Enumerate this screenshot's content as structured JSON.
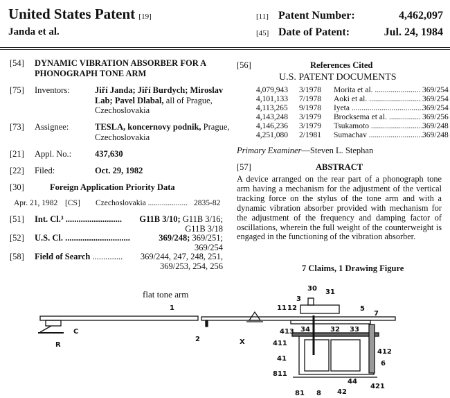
{
  "header": {
    "title": "United States Patent",
    "title_code": "[19]",
    "inventors_short": "Janda et al.",
    "patent_number_code": "[11]",
    "patent_number_label": "Patent Number:",
    "patent_number": "4,462,097",
    "date_code": "[45]",
    "date_label": "Date of Patent:",
    "date": "Jul. 24, 1984"
  },
  "left": {
    "title_code": "[54]",
    "title_line1": "DYNAMIC VIBRATION ABSORBER FOR A",
    "title_line2": "PHONOGRAPH TONE ARM",
    "inventors_code": "[75]",
    "inventors_label": "Inventors:",
    "inventors_line1": "Jiří Janda; Jiří Burdych; Miroslav",
    "inventors_line2_bold": "Lab; Pavel Dlabal,",
    "inventors_line2_rest": " all of Prague,",
    "inventors_line3": "Czechoslovakia",
    "assignee_code": "[73]",
    "assignee_label": "Assignee:",
    "assignee_bold": "TESLA, koncernovy podnik,",
    "assignee_rest": " Prague,",
    "assignee_line2": "Czechoslovakia",
    "appl_code": "[21]",
    "appl_label": "Appl. No.:",
    "appl_no": "437,630",
    "filed_code": "[22]",
    "filed_label": "Filed:",
    "filed": "Oct. 29, 1982",
    "foreign_code": "[30]",
    "foreign_title": "Foreign Application Priority Data",
    "foreign_date": "Apr. 21, 1982",
    "foreign_cc": "[CS]",
    "foreign_country": "Czechoslovakia ....................",
    "foreign_no": "2835-82",
    "intcl_code": "[51]",
    "intcl_label": "Int. Cl.³ ..........................",
    "intcl_bold": "G11B 3/10;",
    "intcl_rest": " G11B 3/16;",
    "intcl_line2": "G11B 3/18",
    "uscl_code": "[52]",
    "uscl_label": "U.S. Cl. ..............................",
    "uscl_bold": "369/248;",
    "uscl_rest": " 369/251;",
    "uscl_line2": "369/254",
    "search_code": "[58]",
    "search_label": "Field of Search",
    "search_dots": "..............",
    "search_line1": "369/244, 247, 248, 251,",
    "search_line2": "369/253, 254, 256"
  },
  "right": {
    "refs_code": "[56]",
    "refs_title": "References Cited",
    "docs_title": "U.S. PATENT DOCUMENTS",
    "references": [
      {
        "number": "4,079,943",
        "date": "3/1978",
        "name": "Morita et al. .......................",
        "class": "369/254"
      },
      {
        "number": "4,101,133",
        "date": "7/1978",
        "name": "Aoki et al. ..........................",
        "class": "369/254"
      },
      {
        "number": "4,113,265",
        "date": "9/1978",
        "name": "Iyeta ....................................",
        "class": "369/254"
      },
      {
        "number": "4,143,248",
        "date": "3/1979",
        "name": "Brocksema et al. ................",
        "class": "369/256"
      },
      {
        "number": "4,146,236",
        "date": "3/1979",
        "name": "Tsukamoto ...........................",
        "class": "369/248"
      },
      {
        "number": "4,251,080",
        "date": "2/1981",
        "name": "Sumachav ............................",
        "class": "369/248"
      }
    ],
    "examiner_label": "Primary Examiner",
    "examiner_name": "—Steven L. Stephan",
    "abstract_code": "[57]",
    "abstract_title": "ABSTRACT",
    "abstract": "A device arranged on the rear part of a phonograph tone arm having a mechanism for the adjustment of the vertical tracking force on the stylus of the tone arm and with a dynamic vibration absorber provided with mechanism for the adjustment of the frequency and damping factor of oscillations, wherein the full weight of the counterweight is engaged in the functioning of the vibration absorber.",
    "claims": "7 Claims, 1 Drawing Figure"
  },
  "drawing": {
    "annotation": "flat tone arm",
    "labels": {
      "l1": "1",
      "l2": "2",
      "C": "C",
      "R": "R",
      "X": "X",
      "l3": "3",
      "l30": "30",
      "l31": "31",
      "l11": "11",
      "l12": "12",
      "l5": "5",
      "l7": "7",
      "l34": "34",
      "l32": "32",
      "l33": "33",
      "l413": "413",
      "l411": "411",
      "l41": "41",
      "l811": "811",
      "l81": "81",
      "l8": "8",
      "l42": "42",
      "l44": "44",
      "l421": "421",
      "l412": "412",
      "l6": "6"
    }
  }
}
